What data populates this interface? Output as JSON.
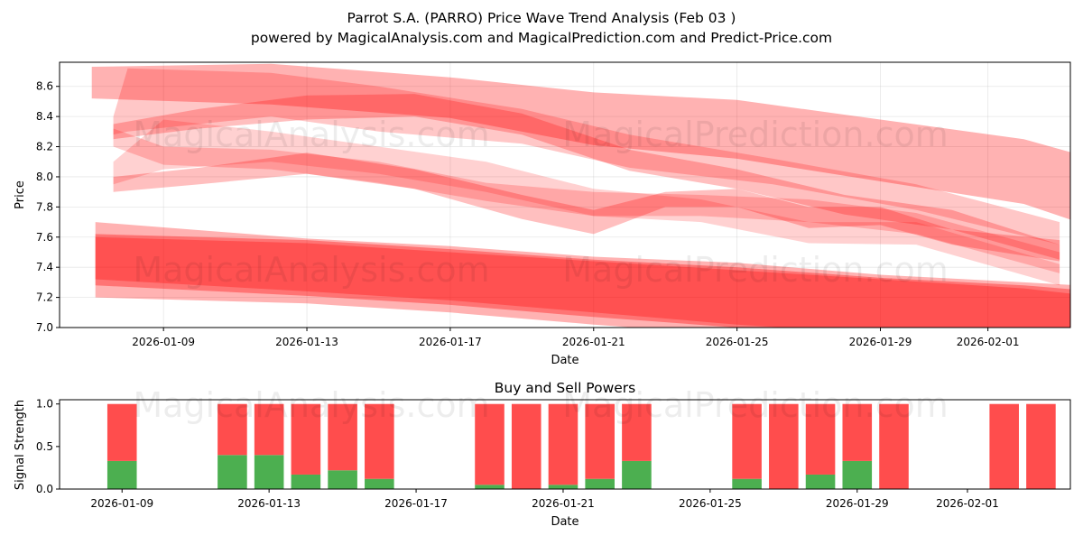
{
  "header": {
    "title": "Parrot S.A. (PARRO) Price Wave Trend Analysis (Feb 03 )",
    "subtitle": "powered by MagicalAnalysis.com and MagicalPrediction.com and Predict-Price.com"
  },
  "watermarks": {
    "left": "MagicalAnalysis.com",
    "right": "MagicalPrediction.com"
  },
  "colors": {
    "band": "#ff0000",
    "buy": "#4caf50",
    "sell": "#ff4d4d"
  },
  "chart_data": [
    {
      "type": "area",
      "title": "",
      "xlabel": "Date",
      "ylabel": "Price",
      "x_range_days": [
        -2.9,
        25.3
      ],
      "ylim": [
        7.0,
        8.76
      ],
      "x_origin_date": "2026-01-09",
      "yticks": [
        7.0,
        7.2,
        7.4,
        7.6,
        7.8,
        8.0,
        8.2,
        8.4,
        8.6
      ],
      "ytick_labels": [
        "7.0",
        "7.2",
        "7.4",
        "7.6",
        "7.8",
        "8.0",
        "8.2",
        "8.4",
        "8.6"
      ],
      "xticks": [
        {
          "day": 0,
          "label": "2026-01-09"
        },
        {
          "day": 4,
          "label": "2026-01-13"
        },
        {
          "day": 8,
          "label": "2026-01-17"
        },
        {
          "day": 12,
          "label": "2026-01-21"
        },
        {
          "day": 16,
          "label": "2026-01-25"
        },
        {
          "day": 20,
          "label": "2026-01-29"
        },
        {
          "day": 23,
          "label": "2026-02-01"
        }
      ],
      "grid": true,
      "series": [
        {
          "name": "upper-long-band",
          "opacity": 0.3,
          "upper": [
            [
              -2,
              8.73
            ],
            [
              3,
              8.75
            ],
            [
              8,
              8.66
            ],
            [
              12,
              8.56
            ],
            [
              16,
              8.51
            ],
            [
              20,
              8.38
            ],
            [
              24,
              8.25
            ],
            [
              25.5,
              8.15
            ]
          ],
          "lower": [
            [
              -2,
              8.52
            ],
            [
              3,
              8.48
            ],
            [
              8,
              8.39
            ],
            [
              12,
              8.21
            ],
            [
              16,
              8.12
            ],
            [
              20,
              7.97
            ],
            [
              24,
              7.82
            ],
            [
              25.5,
              7.7
            ]
          ]
        },
        {
          "name": "upper-wave-band-1",
          "opacity": 0.22,
          "upper": [
            [
              -1.4,
              8.4
            ],
            [
              -1,
              8.72
            ],
            [
              3,
              8.69
            ],
            [
              6,
              8.6
            ],
            [
              10,
              8.45
            ],
            [
              13,
              8.28
            ],
            [
              17,
              8.12
            ],
            [
              21,
              7.95
            ],
            [
              25,
              7.7
            ]
          ],
          "lower": [
            [
              -1.4,
              8.28
            ],
            [
              -1,
              8.3
            ],
            [
              3,
              8.4
            ],
            [
              6,
              8.3
            ],
            [
              10,
              8.22
            ],
            [
              13,
              8.06
            ],
            [
              17,
              7.95
            ],
            [
              21,
              7.78
            ],
            [
              25,
              7.55
            ]
          ]
        },
        {
          "name": "upper-wave-band-2",
          "opacity": 0.25,
          "upper": [
            [
              -1.4,
              8.35
            ],
            [
              1,
              8.45
            ],
            [
              4,
              8.54
            ],
            [
              7,
              8.55
            ],
            [
              10,
              8.42
            ],
            [
              13,
              8.18
            ],
            [
              16,
              8.05
            ],
            [
              19,
              7.88
            ],
            [
              22,
              7.78
            ],
            [
              25,
              7.55
            ]
          ],
          "lower": [
            [
              -1.4,
              8.25
            ],
            [
              1,
              8.32
            ],
            [
              4,
              8.38
            ],
            [
              7,
              8.4
            ],
            [
              10,
              8.28
            ],
            [
              13,
              8.04
            ],
            [
              16,
              7.92
            ],
            [
              19,
              7.75
            ],
            [
              22,
              7.65
            ],
            [
              25,
              7.45
            ]
          ]
        },
        {
          "name": "mid-wave-band-1",
          "opacity": 0.25,
          "upper": [
            [
              -1.4,
              8.0
            ],
            [
              1,
              8.06
            ],
            [
              4,
              8.16
            ],
            [
              7,
              8.05
            ],
            [
              10,
              7.88
            ],
            [
              12,
              7.78
            ],
            [
              14,
              7.9
            ],
            [
              16,
              7.92
            ],
            [
              18,
              7.8
            ],
            [
              20,
              7.8
            ],
            [
              22,
              7.65
            ],
            [
              25,
              7.58
            ]
          ],
          "lower": [
            [
              -1.4,
              7.9
            ],
            [
              1,
              7.95
            ],
            [
              4,
              8.02
            ],
            [
              7,
              7.92
            ],
            [
              10,
              7.72
            ],
            [
              12,
              7.62
            ],
            [
              14,
              7.8
            ],
            [
              16,
              7.8
            ],
            [
              18,
              7.66
            ],
            [
              20,
              7.68
            ],
            [
              22,
              7.55
            ],
            [
              25,
              7.44
            ]
          ]
        },
        {
          "name": "mid-wave-band-2",
          "opacity": 0.2,
          "upper": [
            [
              -1.4,
              8.32
            ],
            [
              0,
              8.2
            ],
            [
              3,
              8.18
            ],
            [
              6,
              8.1
            ],
            [
              9,
              7.96
            ],
            [
              12,
              7.9
            ],
            [
              15,
              7.88
            ],
            [
              18,
              7.85
            ],
            [
              21,
              7.76
            ],
            [
              25,
              7.5
            ]
          ],
          "lower": [
            [
              -1.4,
              8.2
            ],
            [
              0,
              8.08
            ],
            [
              3,
              8.05
            ],
            [
              6,
              7.96
            ],
            [
              9,
              7.84
            ],
            [
              12,
              7.74
            ],
            [
              15,
              7.74
            ],
            [
              18,
              7.7
            ],
            [
              21,
              7.62
            ],
            [
              25,
              7.36
            ]
          ]
        },
        {
          "name": "mid-wave-band-3",
          "opacity": 0.18,
          "upper": [
            [
              -1.4,
              8.1
            ],
            [
              0,
              8.38
            ],
            [
              3,
              8.3
            ],
            [
              6,
              8.2
            ],
            [
              9,
              8.1
            ],
            [
              12,
              7.92
            ],
            [
              15,
              7.85
            ],
            [
              18,
              7.7
            ],
            [
              21,
              7.7
            ],
            [
              25,
              7.42
            ]
          ],
          "lower": [
            [
              -1.4,
              7.95
            ],
            [
              0,
              8.05
            ],
            [
              3,
              8.1
            ],
            [
              6,
              8.02
            ],
            [
              9,
              7.9
            ],
            [
              12,
              7.74
            ],
            [
              15,
              7.7
            ],
            [
              18,
              7.56
            ],
            [
              21,
              7.55
            ],
            [
              25,
              7.28
            ]
          ]
        },
        {
          "name": "lower-band-1",
          "opacity": 0.3,
          "upper": [
            [
              -1.9,
              7.7
            ],
            [
              4,
              7.59
            ],
            [
              8,
              7.54
            ],
            [
              12,
              7.47
            ],
            [
              16,
              7.43
            ],
            [
              20,
              7.35
            ],
            [
              24,
              7.3
            ],
            [
              25.5,
              7.28
            ]
          ],
          "lower": [
            [
              -1.9,
              7.2
            ],
            [
              4,
              7.16
            ],
            [
              8,
              7.1
            ],
            [
              12,
              7.02
            ],
            [
              16,
              6.95
            ],
            [
              20,
              6.9
            ],
            [
              24,
              6.86
            ],
            [
              25.5,
              6.84
            ]
          ]
        },
        {
          "name": "lower-band-2",
          "opacity": 0.35,
          "upper": [
            [
              -1.9,
              7.62
            ],
            [
              4,
              7.58
            ],
            [
              8,
              7.52
            ],
            [
              12,
              7.45
            ],
            [
              16,
              7.4
            ],
            [
              20,
              7.33
            ],
            [
              24,
              7.28
            ],
            [
              25.5,
              7.25
            ]
          ],
          "lower": [
            [
              -1.9,
              7.28
            ],
            [
              4,
              7.21
            ],
            [
              8,
              7.15
            ],
            [
              12,
              7.07
            ],
            [
              16,
              7.0
            ],
            [
              20,
              6.94
            ],
            [
              24,
              6.9
            ],
            [
              25.5,
              6.88
            ]
          ]
        },
        {
          "name": "lower-band-3",
          "opacity": 0.3,
          "upper": [
            [
              -1.9,
              7.6
            ],
            [
              4,
              7.56
            ],
            [
              8,
              7.5
            ],
            [
              12,
              7.44
            ],
            [
              16,
              7.38
            ],
            [
              20,
              7.32
            ],
            [
              24,
              7.26
            ],
            [
              25.5,
              7.22
            ]
          ],
          "lower": [
            [
              -1.9,
              7.32
            ],
            [
              4,
              7.24
            ],
            [
              8,
              7.18
            ],
            [
              12,
              7.1
            ],
            [
              16,
              7.02
            ],
            [
              20,
              6.96
            ],
            [
              24,
              6.92
            ],
            [
              25.5,
              6.9
            ]
          ]
        }
      ]
    },
    {
      "type": "bar",
      "title": "Buy and Sell Powers",
      "xlabel": "Date",
      "ylabel": "Signal Strength",
      "x_range_days": [
        -1.7,
        25.8
      ],
      "ylim": [
        0,
        1.05
      ],
      "yticks": [
        0.0,
        0.5,
        1.0
      ],
      "ytick_labels": [
        "0.0",
        "0.5",
        "1.0"
      ],
      "xticks": [
        {
          "day": 0,
          "label": "2026-01-09"
        },
        {
          "day": 4,
          "label": "2026-01-13"
        },
        {
          "day": 8,
          "label": "2026-01-17"
        },
        {
          "day": 12,
          "label": "2026-01-21"
        },
        {
          "day": 16,
          "label": "2026-01-25"
        },
        {
          "day": 20,
          "label": "2026-01-29"
        },
        {
          "day": 23,
          "label": "2026-02-01"
        }
      ],
      "series": [
        {
          "name": "Buy",
          "color": "#4caf50"
        },
        {
          "name": "Sell",
          "color": "#ff4d4d"
        }
      ],
      "bars": [
        {
          "day": 0,
          "buy": 0.33,
          "sell": 0.67
        },
        {
          "day": 3,
          "buy": 0.4,
          "sell": 0.6
        },
        {
          "day": 4,
          "buy": 0.4,
          "sell": 0.6
        },
        {
          "day": 5,
          "buy": 0.17,
          "sell": 0.83
        },
        {
          "day": 6,
          "buy": 0.22,
          "sell": 0.78
        },
        {
          "day": 7,
          "buy": 0.12,
          "sell": 0.88
        },
        {
          "day": 10,
          "buy": 0.05,
          "sell": 0.95
        },
        {
          "day": 11,
          "buy": 0.0,
          "sell": 1.0
        },
        {
          "day": 12,
          "buy": 0.05,
          "sell": 0.95
        },
        {
          "day": 13,
          "buy": 0.12,
          "sell": 0.88
        },
        {
          "day": 14,
          "buy": 0.33,
          "sell": 0.67
        },
        {
          "day": 17,
          "buy": 0.12,
          "sell": 0.88
        },
        {
          "day": 18,
          "buy": 0.0,
          "sell": 1.0
        },
        {
          "day": 19,
          "buy": 0.17,
          "sell": 0.83
        },
        {
          "day": 20,
          "buy": 0.33,
          "sell": 0.67
        },
        {
          "day": 21,
          "buy": 0.0,
          "sell": 1.0
        },
        {
          "day": 24,
          "buy": 0.0,
          "sell": 1.0
        },
        {
          "day": 25,
          "buy": 0.0,
          "sell": 1.0
        }
      ]
    }
  ]
}
